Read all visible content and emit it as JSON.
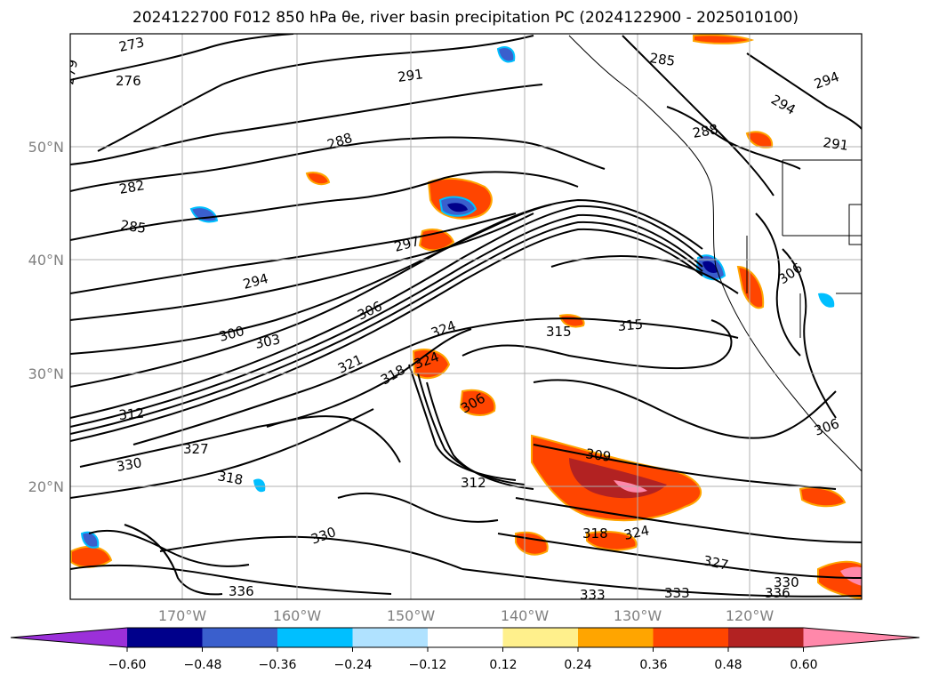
{
  "title": "2024122700 F012 850 hPa θe, river basin precipitation PC (2024122900 - 2025010100)",
  "lon_labels": [
    "170°W",
    "160°W",
    "150°W",
    "140°W",
    "130°W",
    "120°W"
  ],
  "lat_labels": [
    "50°N",
    "40°N",
    "30°N",
    "20°N"
  ],
  "colorbar": {
    "ticks": [
      "−0.60",
      "−0.48",
      "−0.36",
      "−0.24",
      "−0.12",
      "0.12",
      "0.24",
      "0.36",
      "0.48",
      "0.60"
    ],
    "colors": [
      "#9b30d9",
      "#00008b",
      "#3a5fcd",
      "#00bfff",
      "#b0e2ff",
      "#ffffff",
      "#fff08c",
      "#ffa500",
      "#ff4500",
      "#b22222",
      "#ff88aa"
    ]
  },
  "contour_labels": [
    "273",
    "276",
    "279",
    "282",
    "285",
    "288",
    "291",
    "294",
    "297",
    "300",
    "303",
    "306",
    "309",
    "312",
    "315",
    "318",
    "321",
    "324",
    "327",
    "330",
    "333",
    "336"
  ]
}
